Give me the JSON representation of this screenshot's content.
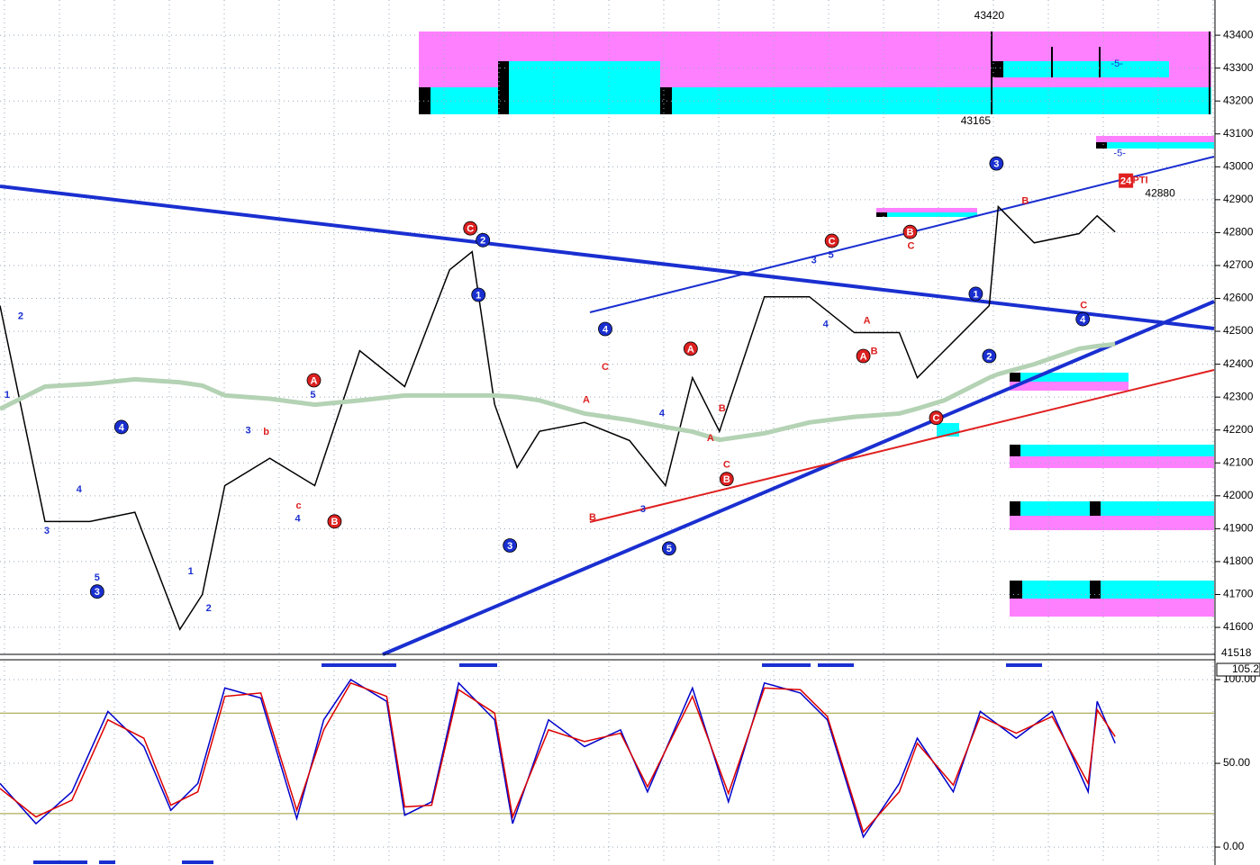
{
  "chart_data": [
    {
      "type": "line",
      "x": [
        0,
        10,
        20,
        30,
        40,
        45,
        50,
        60,
        70,
        80,
        90,
        100,
        105,
        110,
        115,
        120,
        130,
        140,
        148,
        154,
        160,
        170,
        180,
        190,
        200,
        204,
        210,
        220,
        222,
        230,
        240,
        244,
        248
      ],
      "series": [
        {
          "color": "#000000",
          "values": [
            42578,
            41922,
            41922,
            41950,
            41594,
            41700,
            42031,
            42114,
            42031,
            42441,
            42332,
            42687,
            42742,
            42278,
            42086,
            42196,
            42223,
            42168,
            42031,
            42359,
            42196,
            42605,
            42605,
            42496,
            42496,
            42359,
            42441,
            42578,
            42879,
            42769,
            42797,
            42851,
            42802
          ]
        },
        {
          "color": "#b4d2b4",
          "values": [
            42264,
            42332,
            42340,
            42354,
            42345,
            42335,
            42305,
            42295,
            42277,
            42290,
            42305,
            42305,
            42305,
            42305,
            42300,
            42290,
            42250,
            42230,
            42209,
            42195,
            42170,
            42190,
            42223,
            42240,
            42250,
            42265,
            42290,
            42359,
            42370,
            42400,
            42447,
            42455,
            42461
          ]
        }
      ],
      "xlim": [
        0,
        270
      ],
      "ylim": [
        41518,
        43507
      ],
      "yticks": [
        43400,
        43300,
        43200,
        43100,
        43000,
        42900,
        42800,
        42700,
        42600,
        42500,
        42400,
        42300,
        42200,
        42100,
        42000,
        41900,
        41800,
        41700,
        41600
      ],
      "grid": true,
      "price_labels": [
        {
          "value": 43420,
          "x": 220,
          "pos": "above"
        },
        {
          "value": 43165,
          "x": 217,
          "pos": "below"
        },
        {
          "value": 42880,
          "x": 258,
          "pos": "above"
        }
      ],
      "annotations": [
        {
          "text": "3",
          "x": 21.6,
          "y": 41709,
          "style": "blue-circle"
        },
        {
          "text": "4",
          "x": 27,
          "y": 42209,
          "style": "blue-circle"
        },
        {
          "text": "3",
          "x": 113.4,
          "y": 41849,
          "style": "blue-circle"
        },
        {
          "text": "4",
          "x": 134.6,
          "y": 42507,
          "style": "blue-circle"
        },
        {
          "text": "5",
          "x": 148.8,
          "y": 41840,
          "style": "blue-circle"
        },
        {
          "text": "2",
          "x": 107.4,
          "y": 42777,
          "style": "blue-circle"
        },
        {
          "text": "1",
          "x": 106.4,
          "y": 42611,
          "style": "blue-circle"
        },
        {
          "text": "3",
          "x": 221.6,
          "y": 43010,
          "style": "blue-circle"
        },
        {
          "text": "1",
          "x": 217,
          "y": 42614,
          "style": "blue-circle"
        },
        {
          "text": "2",
          "x": 220,
          "y": 42425,
          "style": "blue-circle"
        },
        {
          "text": "4",
          "x": 240.8,
          "y": 42537,
          "style": "blue-circle"
        },
        {
          "text": "A",
          "x": 69.8,
          "y": 42351,
          "style": "red-circle"
        },
        {
          "text": "B",
          "x": 74.4,
          "y": 41922,
          "style": "red-circle"
        },
        {
          "text": "C",
          "x": 104.6,
          "y": 42813,
          "style": "red-circle"
        },
        {
          "text": "A",
          "x": 153.6,
          "y": 42447,
          "style": "red-circle"
        },
        {
          "text": "B",
          "x": 161.6,
          "y": 42051,
          "style": "red-circle"
        },
        {
          "text": "C",
          "x": 185,
          "y": 42775,
          "style": "red-circle"
        },
        {
          "text": "B",
          "x": 202.4,
          "y": 42802,
          "style": "red-circle"
        },
        {
          "text": "C",
          "x": 208.2,
          "y": 42237,
          "style": "red-circle"
        },
        {
          "text": "A",
          "x": 192,
          "y": 42425,
          "style": "red-circle"
        },
        {
          "text": "1",
          "x": 1.6,
          "y": 42305,
          "style": "blue"
        },
        {
          "text": "2",
          "x": 4.6,
          "y": 42545,
          "style": "blue"
        },
        {
          "text": "3",
          "x": 10.4,
          "y": 41892,
          "style": "blue"
        },
        {
          "text": "4",
          "x": 17.6,
          "y": 42018,
          "style": "blue"
        },
        {
          "text": "5",
          "x": 21.6,
          "y": 41750,
          "style": "blue"
        },
        {
          "text": "1",
          "x": 42.4,
          "y": 41769,
          "style": "blue"
        },
        {
          "text": "2",
          "x": 46.4,
          "y": 41657,
          "style": "blue"
        },
        {
          "text": "3",
          "x": 55.2,
          "y": 42198,
          "style": "blue"
        },
        {
          "text": "4",
          "x": 66.2,
          "y": 41930,
          "style": "blue"
        },
        {
          "text": "5",
          "x": 69.6,
          "y": 42305,
          "style": "blue"
        },
        {
          "text": "3",
          "x": 143,
          "y": 41958,
          "style": "blue"
        },
        {
          "text": "4",
          "x": 147.2,
          "y": 42250,
          "style": "blue"
        },
        {
          "text": "4",
          "x": 183.6,
          "y": 42521,
          "style": "blue"
        },
        {
          "text": "5",
          "x": 184.8,
          "y": 42731,
          "style": "blue"
        },
        {
          "text": "3",
          "x": 181,
          "y": 42715,
          "style": "blue"
        },
        {
          "text": "c",
          "x": 66.4,
          "y": 41969,
          "style": "red"
        },
        {
          "text": "b",
          "x": 59.2,
          "y": 42193,
          "style": "red"
        },
        {
          "text": "A",
          "x": 130.4,
          "y": 42291,
          "style": "red"
        },
        {
          "text": "C",
          "x": 134.6,
          "y": 42390,
          "style": "red"
        },
        {
          "text": "B",
          "x": 131.8,
          "y": 41933,
          "style": "red"
        },
        {
          "text": "A",
          "x": 158,
          "y": 42174,
          "style": "red"
        },
        {
          "text": "B",
          "x": 160.6,
          "y": 42264,
          "style": "red"
        },
        {
          "text": "C",
          "x": 161.6,
          "y": 42094,
          "style": "red"
        },
        {
          "text": "A",
          "x": 192.8,
          "y": 42532,
          "style": "red"
        },
        {
          "text": "B",
          "x": 194.4,
          "y": 42439,
          "style": "red"
        },
        {
          "text": "C",
          "x": 202.6,
          "y": 42758,
          "style": "red"
        },
        {
          "text": "B",
          "x": 228,
          "y": 42895,
          "style": "red"
        },
        {
          "text": "C",
          "x": 241,
          "y": 42578,
          "style": "red"
        },
        {
          "text": "-5-",
          "x": 248.4,
          "y": 43313,
          "style": "small-blue"
        },
        {
          "text": "-5-",
          "x": 249,
          "y": 43040,
          "style": "small-blue"
        },
        {
          "text": "24",
          "x": 250.4,
          "y": 42958,
          "style": "tag"
        },
        {
          "text": "PTI",
          "x": 253.6,
          "y": 42958,
          "style": "red"
        }
      ]
    },
    {
      "type": "line",
      "x": [
        0,
        8,
        16,
        24,
        32,
        38,
        44,
        50,
        58,
        66,
        72,
        78,
        86,
        90,
        96,
        102,
        110,
        114,
        122,
        130,
        138,
        144,
        154,
        162,
        170,
        178,
        184,
        192,
        200,
        204,
        212,
        218,
        226,
        234,
        242,
        244,
        248
      ],
      "series": [
        {
          "color": "#0000cc",
          "values": [
            38,
            14,
            33,
            81,
            60,
            22,
            38,
            95,
            89,
            17,
            76,
            100,
            87,
            19,
            27,
            98,
            76,
            14,
            76,
            60,
            70,
            33,
            95,
            27,
            98,
            92,
            76,
            6,
            38,
            65,
            33,
            81,
            65,
            81,
            33,
            87,
            62
          ]
        },
        {
          "color": "#dd0000",
          "values": [
            35,
            18,
            28,
            76,
            65,
            25,
            33,
            90,
            92,
            22,
            70,
            98,
            90,
            24,
            25,
            94,
            80,
            18,
            70,
            63,
            68,
            36,
            90,
            32,
            95,
            94,
            78,
            9,
            33,
            62,
            37,
            78,
            68,
            78,
            38,
            82,
            66
          ]
        }
      ],
      "xlim": [
        0,
        270
      ],
      "ylim": [
        -9.1,
        109.7
      ],
      "yticks": [
        {
          "value": 100,
          "label": "100.00"
        },
        {
          "value": 50,
          "label": "50.00"
        },
        {
          "value": 0,
          "label": "0.00"
        }
      ],
      "ref_lines": [
        80,
        20
      ],
      "readout": "105.2"
    }
  ]
}
